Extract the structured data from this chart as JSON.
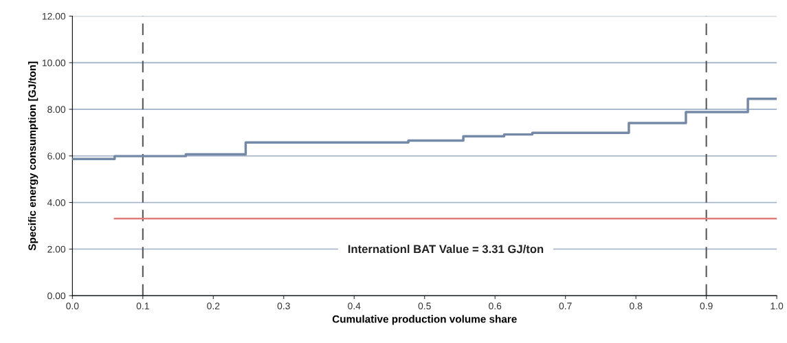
{
  "chart_data": {
    "type": "step",
    "xlabel": "Cumulative production volume share",
    "ylabel": "Specific energy consumption [GJ/ton]",
    "series": [
      {
        "color": "#7489a8",
        "x": [
          0.0,
          0.06,
          0.161,
          0.246,
          0.477,
          0.555,
          0.613,
          0.653,
          0.79,
          0.871,
          0.959,
          1.0
        ],
        "values": [
          5.87,
          5.99,
          6.07,
          6.58,
          6.66,
          6.84,
          6.92,
          6.99,
          7.41,
          7.88,
          8.45,
          8.45
        ]
      },
      {
        "type": "line",
        "name": "Internationl BAT Value = 3.31 GJ/ton",
        "color": "#e07b7b",
        "x": [
          0.06,
          1.0
        ],
        "values": [
          3.31,
          3.31
        ]
      }
    ],
    "ref_lines": [
      {
        "axis": "x",
        "value": 0.1,
        "color": "#555555",
        "line_style": "dashed"
      },
      {
        "axis": "x",
        "value": 0.9,
        "color": "#555555",
        "line_style": "dashed"
      }
    ],
    "xlim": [
      0,
      1
    ],
    "ylim": [
      0,
      12
    ],
    "xticks": [
      {
        "value": 0,
        "label": "0.0"
      },
      0.1,
      0.2,
      0.3,
      0.4,
      0.5,
      0.6,
      0.7,
      0.8,
      0.9,
      {
        "value": 1,
        "label": "1.0"
      }
    ],
    "yticks": [
      {
        "value": 0,
        "label": "0.00"
      },
      {
        "value": 2,
        "label": "2.00"
      },
      {
        "value": 4,
        "label": "4.00"
      },
      {
        "value": 6,
        "label": "6.00"
      },
      {
        "value": 8,
        "label": "8.00"
      },
      {
        "value": 10,
        "label": "10.00"
      },
      {
        "value": 12,
        "label": "12.00"
      }
    ],
    "grid": "y",
    "legend": false
  }
}
